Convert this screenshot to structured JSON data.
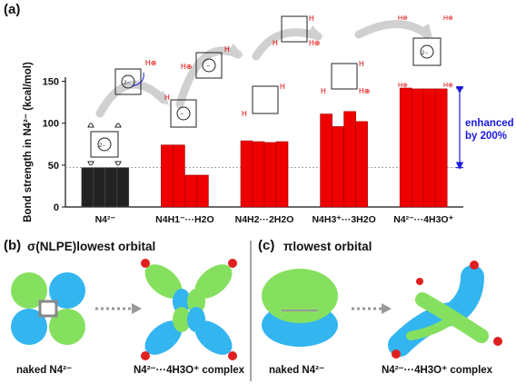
{
  "figure": {
    "panel_a_label": "(a)",
    "panel_b_label": "(b)",
    "panel_b_title": "σ(NLPE)lowest orbital",
    "panel_c_label": "(c)",
    "panel_c_title": "πlowest orbital",
    "panel_b_caption_left": "naked N4²⁻",
    "panel_b_caption_right": "N4²⁻···4H3O⁺ complex",
    "panel_c_caption_left": "naked N4²⁻",
    "panel_c_caption_right": "N4²⁻···4H3O⁺ complex",
    "enhanced_label_line1": "enhanced",
    "enhanced_label_line2": "by 200%",
    "colors": {
      "naked_bars": "#222222",
      "complex_bars": "#ee0000",
      "accent_blue": "#1a1adc",
      "orbital_green": "#86e060",
      "orbital_blue": "#33b5f0",
      "arrow_gray": "#cfcfcf"
    }
  },
  "chart_data": {
    "type": "bar",
    "ylabel": "Bond strength in N4²⁻ (kcal/mol)",
    "ylim": [
      0,
      155
    ],
    "yticks": [
      0,
      50,
      100,
      150
    ],
    "reference_line": 47,
    "enhancement_bracket": [
      47,
      142
    ],
    "categories": [
      "N4²⁻",
      "N4H1⁻···H2O",
      "N4H2···2H2O",
      "N4H3⁺···3H2O",
      "N4²⁻···4H3O⁺"
    ],
    "series": [
      {
        "values": [
          47,
          74,
          79,
          111,
          142
        ]
      },
      {
        "values": [
          47,
          74,
          78,
          96,
          141
        ]
      },
      {
        "values": [
          47,
          38,
          77,
          114,
          141
        ]
      },
      {
        "values": [
          47,
          38,
          78,
          102,
          141
        ]
      }
    ]
  }
}
